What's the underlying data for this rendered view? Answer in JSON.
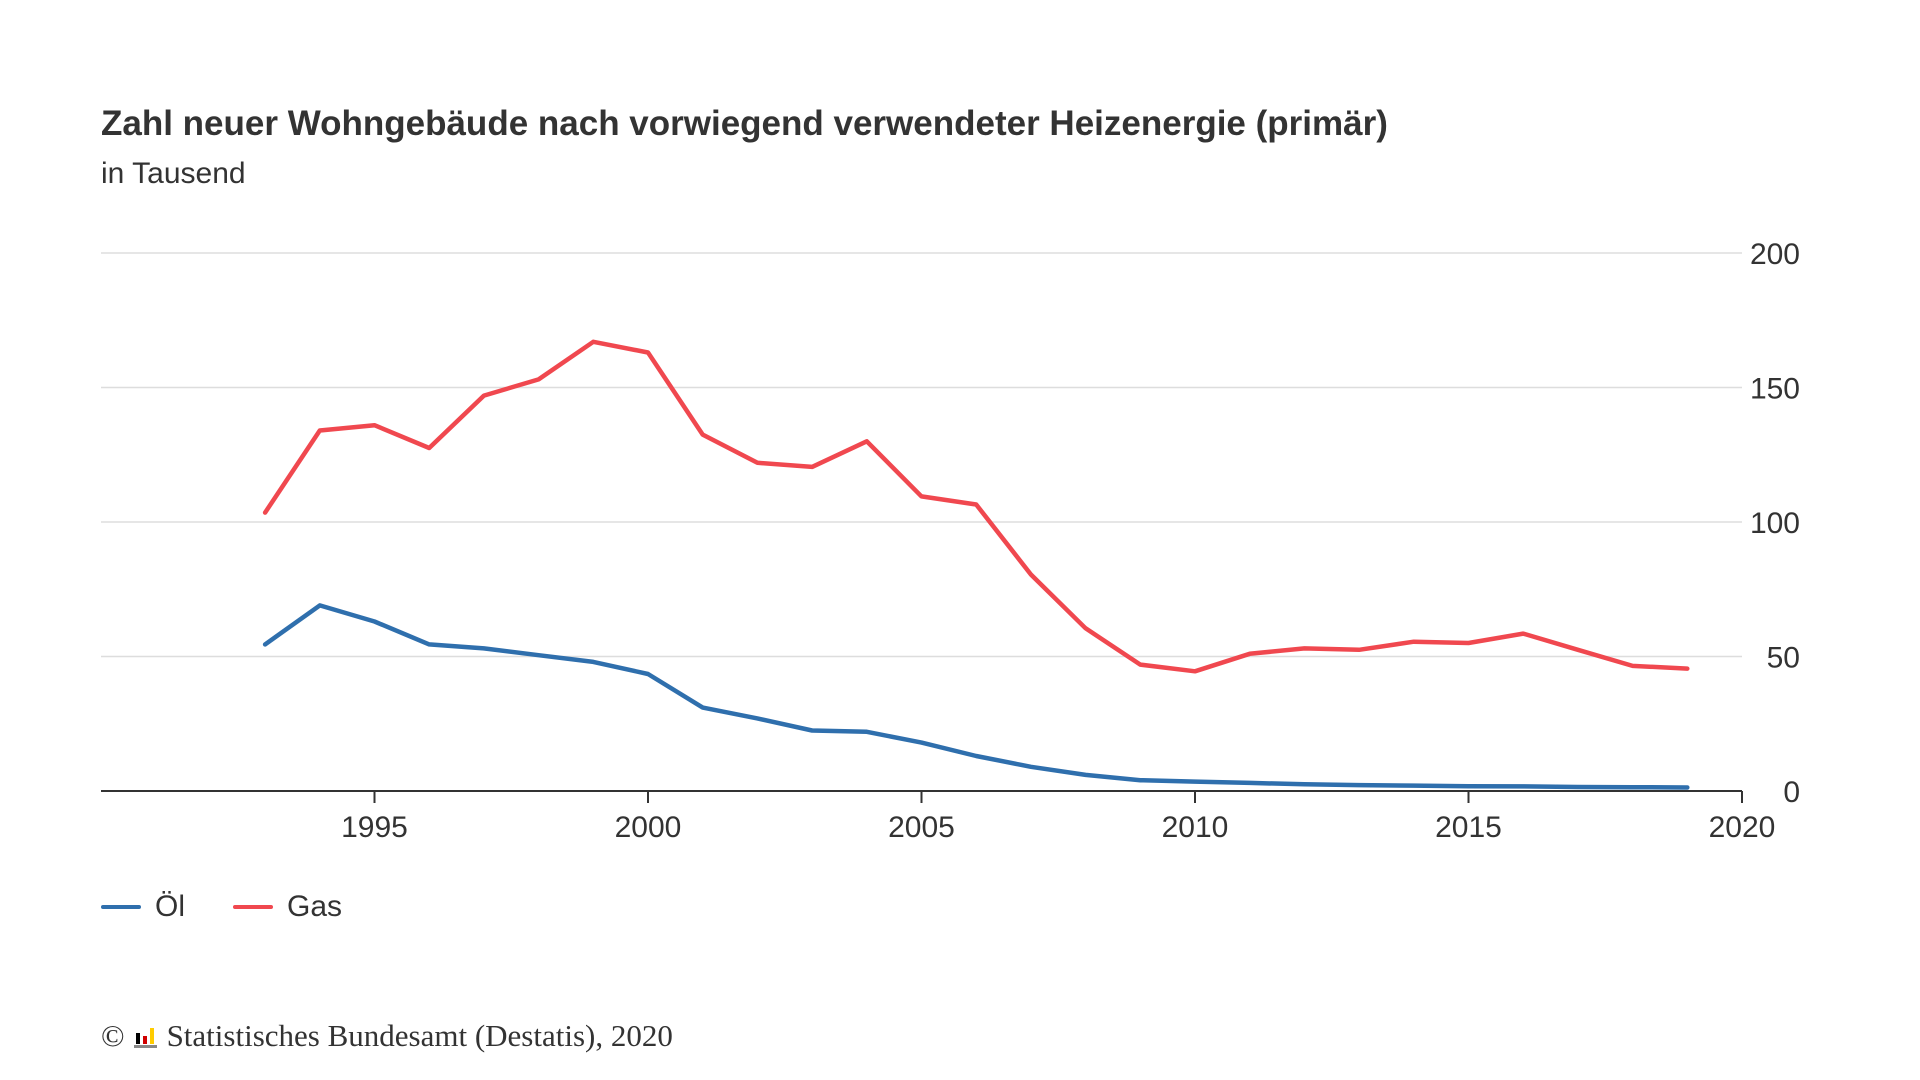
{
  "header": {
    "title": "Zahl neuer Wohngebäude nach vorwiegend verwendeter Heizenergie (primär)",
    "subtitle": "in Tausend"
  },
  "footer": {
    "copyright_symbol": "©",
    "source": "Statistisches Bundesamt (Destatis), 2020",
    "logo_icon": "destatis-logo-icon"
  },
  "colors": {
    "oel": "#2f6fad",
    "gas": "#f0484f",
    "grid": "#dddddd",
    "axis": "#333333",
    "text": "#333333"
  },
  "chart_data": {
    "type": "line",
    "title": "Zahl neuer Wohngebäude nach vorwiegend verwendeter Heizenergie (primär)",
    "subtitle": "in Tausend",
    "xlabel": "",
    "ylabel": "",
    "x": [
      1993,
      1994,
      1995,
      1996,
      1997,
      1998,
      1999,
      2000,
      2001,
      2002,
      2003,
      2004,
      2005,
      2006,
      2007,
      2008,
      2009,
      2010,
      2011,
      2012,
      2013,
      2014,
      2015,
      2016,
      2017,
      2018,
      2019
    ],
    "xlim": [
      1990,
      2020
    ],
    "ylim": [
      0,
      200
    ],
    "x_ticks": [
      1995,
      2000,
      2005,
      2010,
      2015,
      2020
    ],
    "y_ticks": [
      0,
      50,
      100,
      150,
      200
    ],
    "y_axis_side": "right",
    "grid": true,
    "legend_position": "bottom-left",
    "series": [
      {
        "name": "Öl",
        "color": "#2f6fad",
        "values": [
          54.5,
          69,
          63,
          54.5,
          53,
          50.5,
          48,
          43.5,
          31,
          27,
          22.5,
          22,
          18,
          13,
          9,
          6,
          4,
          3.5,
          3,
          2.5,
          2.2,
          2,
          1.8,
          1.7,
          1.5,
          1.4,
          1.3
        ]
      },
      {
        "name": "Gas",
        "color": "#f0484f",
        "values": [
          103.5,
          134,
          136,
          127.5,
          147,
          153,
          167,
          163,
          132.5,
          122,
          120.5,
          130,
          109.5,
          106.5,
          80.5,
          60.5,
          47,
          44.5,
          51,
          53,
          52.5,
          55.5,
          55,
          58.5,
          52.5,
          46.5,
          45.5
        ]
      }
    ]
  }
}
